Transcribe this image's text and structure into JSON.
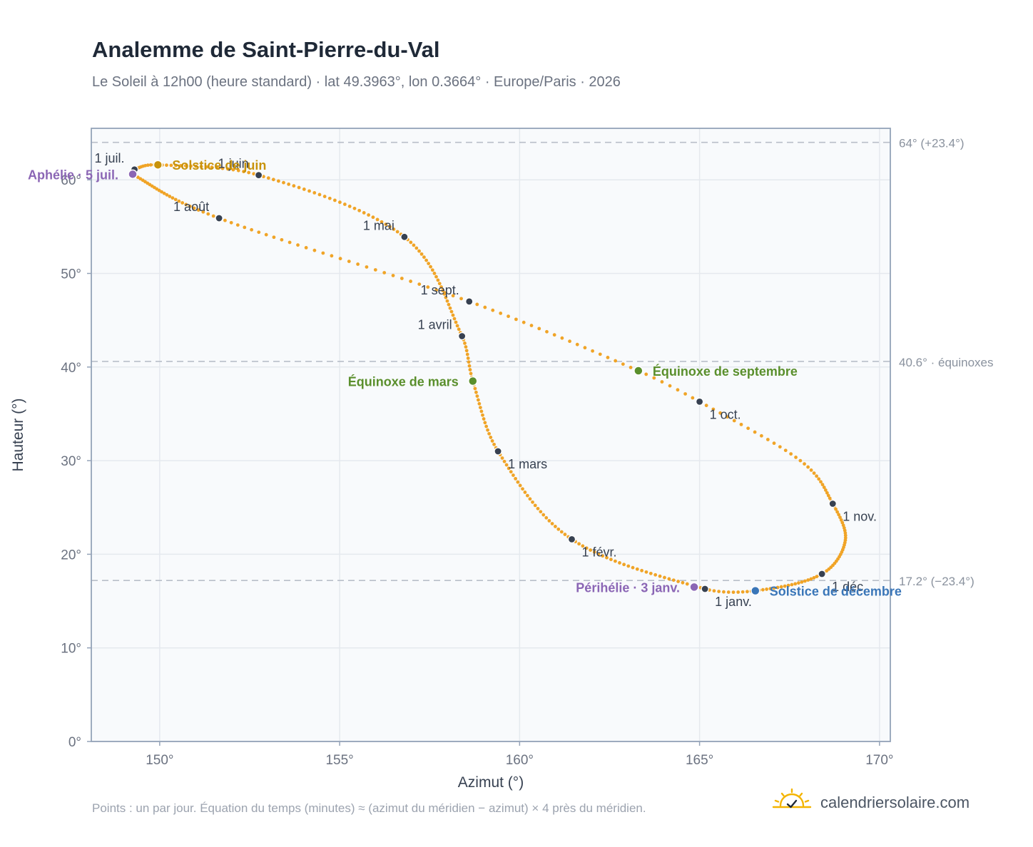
{
  "title": "Analemme de Saint-Pierre-du-Val",
  "subtitle": "Le Soleil à 12h00 (heure standard) · lat 49.3963°, lon 0.3664° · Europe/Paris · 2026",
  "footnote": "Points : un par jour. Équation du temps (minutes) ≈ (azimut du méridien − azimut) × 4 près du méridien.",
  "brand": {
    "name": "calendriersolaire.com",
    "logo_icon": "sun-check-icon"
  },
  "colors": {
    "curve": "#f0a427",
    "month_marker": "#374151",
    "solstice_june": "#c8930b",
    "solstice_december": "#3a76b8",
    "equinox": "#5a8f2c",
    "apsis": "#8b66b5",
    "reference_line": "#b8bfc9",
    "plot_bg": "#f8fafc",
    "grid": "#e5e9ee",
    "axis": "#94a3b8"
  },
  "chart_data": {
    "type": "scatter",
    "title": "Analemme de Saint-Pierre-du-Val",
    "subtitle": "Le Soleil à 12h00 (heure standard) · lat 49.3963°, lon 0.3664° · Europe/Paris · 2026",
    "xlabel": "Azimut (°)",
    "ylabel": "Hauteur (°)",
    "xlim": [
      148.1,
      170.3
    ],
    "ylim": [
      0,
      65.5
    ],
    "xticks": [
      150,
      155,
      160,
      165,
      170
    ],
    "xtick_labels": [
      "150°",
      "155°",
      "160°",
      "165°",
      "170°"
    ],
    "yticks": [
      0,
      10,
      20,
      30,
      40,
      50,
      60
    ],
    "ytick_labels": [
      "0°",
      "10°",
      "20°",
      "30°",
      "40°",
      "50°",
      "60°"
    ],
    "grid": true,
    "series": [
      {
        "points_per_day": 1,
        "anchors": [
          {
            "day": 0,
            "az": 165.15,
            "alt": 16.3
          },
          {
            "day": 31,
            "az": 161.45,
            "alt": 21.6
          },
          {
            "day": 59,
            "az": 159.4,
            "alt": 31.0
          },
          {
            "day": 78,
            "az": 158.7,
            "alt": 38.5
          },
          {
            "day": 90,
            "az": 158.4,
            "alt": 43.3
          },
          {
            "day": 120,
            "az": 156.8,
            "alt": 53.9
          },
          {
            "day": 151,
            "az": 152.75,
            "alt": 60.5
          },
          {
            "day": 171,
            "az": 149.95,
            "alt": 61.6
          },
          {
            "day": 181,
            "az": 149.3,
            "alt": 61.1
          },
          {
            "day": 185,
            "az": 149.25,
            "alt": 60.6
          },
          {
            "day": 212,
            "az": 151.65,
            "alt": 55.9
          },
          {
            "day": 243,
            "az": 158.6,
            "alt": 47.0
          },
          {
            "day": 265,
            "az": 163.3,
            "alt": 39.6
          },
          {
            "day": 273,
            "az": 165.0,
            "alt": 36.3
          },
          {
            "day": 289,
            "az": 167.8,
            "alt": 30.0
          },
          {
            "day": 304,
            "az": 168.7,
            "alt": 25.4
          },
          {
            "day": 318,
            "az": 169.05,
            "alt": 21.5
          },
          {
            "day": 334,
            "az": 168.4,
            "alt": 17.9
          },
          {
            "day": 354,
            "az": 166.55,
            "alt": 16.1
          },
          {
            "day": 365,
            "az": 165.15,
            "alt": 16.3
          }
        ]
      }
    ],
    "month_markers": [
      {
        "label": "1 janv.",
        "az": 165.15,
        "alt": 16.3,
        "label_pos": "below-right"
      },
      {
        "label": "1 févr.",
        "az": 161.45,
        "alt": 21.6,
        "label_pos": "below-right"
      },
      {
        "label": "1 mars",
        "az": 159.4,
        "alt": 31.0,
        "label_pos": "below-right"
      },
      {
        "label": "1 avril",
        "az": 158.4,
        "alt": 43.3,
        "label_pos": "above-left"
      },
      {
        "label": "1 mai",
        "az": 156.8,
        "alt": 53.9,
        "label_pos": "above-left"
      },
      {
        "label": "1 juin",
        "az": 152.75,
        "alt": 60.5,
        "label_pos": "above-left"
      },
      {
        "label": "1 juil.",
        "az": 149.3,
        "alt": 61.1,
        "label_pos": "above-left"
      },
      {
        "label": "1 août",
        "az": 151.65,
        "alt": 55.9,
        "label_pos": "above-left"
      },
      {
        "label": "1 sept.",
        "az": 158.6,
        "alt": 47.0,
        "label_pos": "above-left"
      },
      {
        "label": "1 oct.",
        "az": 165.0,
        "alt": 36.3,
        "label_pos": "below-right"
      },
      {
        "label": "1 nov.",
        "az": 168.7,
        "alt": 25.4,
        "label_pos": "below-right"
      },
      {
        "label": "1 déc.",
        "az": 168.4,
        "alt": 17.9,
        "label_pos": "below-right"
      }
    ],
    "events": [
      {
        "label": "Solstice de juin",
        "az": 149.95,
        "alt": 61.6,
        "color_key": "solstice_june",
        "label_pos": "right"
      },
      {
        "label": "Aphélie · 5 juil.",
        "az": 149.25,
        "alt": 60.6,
        "color_key": "apsis",
        "label_pos": "left"
      },
      {
        "label": "Équinoxe de mars",
        "az": 158.7,
        "alt": 38.5,
        "color_key": "equinox",
        "label_pos": "left"
      },
      {
        "label": "Équinoxe de septembre",
        "az": 163.3,
        "alt": 39.6,
        "color_key": "equinox",
        "label_pos": "right"
      },
      {
        "label": "Périhélie · 3 janv.",
        "az": 164.85,
        "alt": 16.5,
        "color_key": "apsis",
        "label_pos": "left"
      },
      {
        "label": "Solstice de décembre",
        "az": 166.55,
        "alt": 16.1,
        "color_key": "solstice_december",
        "label_pos": "right"
      }
    ],
    "reference_lines": [
      {
        "alt": 64.0,
        "label": "64° (+23.4°)"
      },
      {
        "alt": 40.6,
        "label": "40.6° · équinoxes"
      },
      {
        "alt": 17.2,
        "label": "17.2° (−23.4°)"
      }
    ]
  }
}
